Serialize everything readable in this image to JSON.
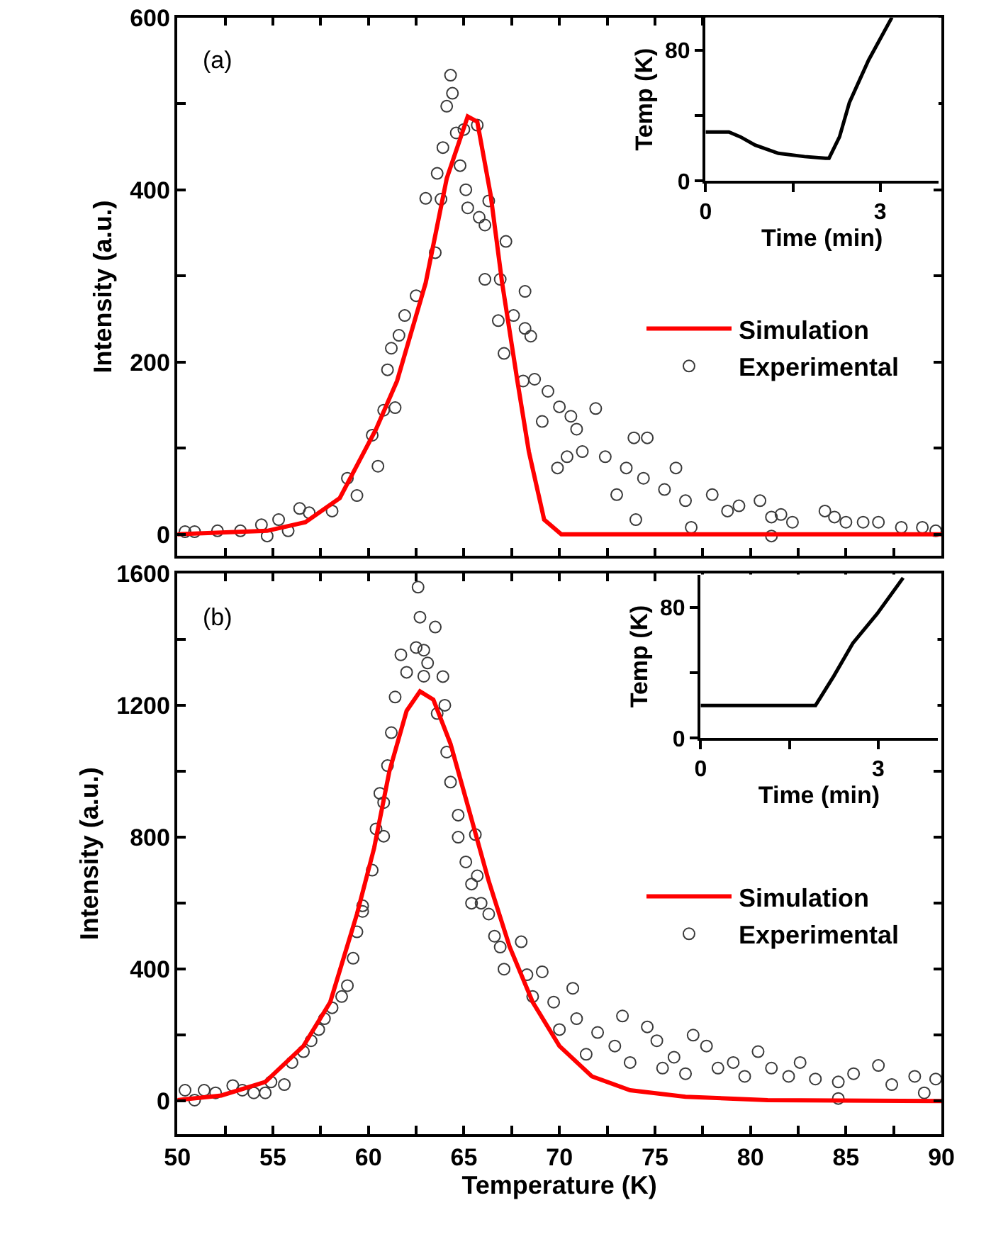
{
  "chart_data": [
    {
      "type": "scatter",
      "title": "(a)",
      "ylabel": "Intensity (a.u.)",
      "xlim": [
        50,
        90
      ],
      "ylim": [
        -25,
        600
      ],
      "xticks": [
        50,
        {
          "value": 52.5,
          "label": null
        },
        55,
        {
          "value": 57.5,
          "label": null
        },
        60,
        {
          "value": 62.5,
          "label": null
        },
        65,
        {
          "value": 67.5,
          "label": null
        },
        70,
        {
          "value": 72.5,
          "label": null
        },
        75,
        {
          "value": 77.5,
          "label": null
        },
        80,
        {
          "value": 82.5,
          "label": null
        },
        85,
        {
          "value": 87.5,
          "label": null
        },
        90
      ],
      "yticks": [
        0,
        {
          "value": 100,
          "label": null
        },
        200,
        {
          "value": 300,
          "label": null
        },
        400,
        {
          "value": 500,
          "label": null
        },
        600
      ],
      "tick_labels": "y",
      "legend": "right",
      "series": [
        {
          "name": "Experimental",
          "type": "scatter",
          "marker": "circle",
          "color": "#3a3a3a",
          "x": [
            50.4,
            50.9,
            52.1,
            53.3,
            54.4,
            54.7,
            55.3,
            55.8,
            56.4,
            56.9,
            58.1,
            58.9,
            59.4,
            60.2,
            60.5,
            60.8,
            61.0,
            61.2,
            61.4,
            61.6,
            61.9,
            62.5,
            63.0,
            63.5,
            63.6,
            63.8,
            63.9,
            64.1,
            64.3,
            64.4,
            64.6,
            64.8,
            65.0,
            65.1,
            65.2,
            65.7,
            65.8,
            66.1,
            66.1,
            66.3,
            66.8,
            66.9,
            67.1,
            67.2,
            67.6,
            68.1,
            68.2,
            68.2,
            68.5,
            68.7,
            69.1,
            69.4,
            69.9,
            70.0,
            70.4,
            70.6,
            70.9,
            71.2,
            71.9,
            72.4,
            73.0,
            73.5,
            73.9,
            74.0,
            74.4,
            74.6,
            75.5,
            76.1,
            76.6,
            76.9,
            78.0,
            78.8,
            79.4,
            80.5,
            81.1,
            81.1,
            81.6,
            82.2,
            83.9,
            84.4,
            85.0,
            85.9,
            86.7,
            87.9,
            89.0,
            89.7
          ],
          "values": [
            3,
            3,
            4,
            4,
            11,
            -2,
            17,
            4,
            30,
            25,
            27,
            65,
            45,
            115,
            79,
            144,
            191,
            216,
            147,
            231,
            254,
            277,
            390,
            327,
            419,
            389,
            449,
            497,
            533,
            512,
            466,
            428,
            470,
            400,
            379,
            475,
            368,
            359,
            296,
            387,
            248,
            296,
            210,
            340,
            254,
            178,
            282,
            239,
            230,
            180,
            131,
            166,
            77,
            148,
            90,
            137,
            122,
            96,
            146,
            90,
            46,
            77,
            112,
            17,
            65,
            112,
            52,
            77,
            39,
            8,
            46,
            27,
            33,
            39,
            20,
            -2,
            23,
            14,
            27,
            20,
            14,
            14,
            14,
            8,
            8,
            4
          ]
        },
        {
          "name": "Simulation",
          "type": "line",
          "line_style": "solid",
          "color": "#ff0000",
          "x": [
            50,
            54.7,
            56.7,
            58.5,
            60.4,
            61.5,
            63.0,
            64.1,
            65.2,
            65.7,
            66.4,
            67.0,
            67.8,
            68.4,
            69.2,
            70.1,
            90
          ],
          "values": [
            0,
            4,
            14,
            42,
            122,
            178,
            292,
            413,
            485,
            479,
            394,
            292,
            178,
            96,
            17,
            0,
            0
          ]
        }
      ]
    },
    {
      "type": "line",
      "xlabel": "Time (min)",
      "ylabel": "Temp (K)",
      "xlim": [
        0,
        4
      ],
      "ylim": [
        0,
        100
      ],
      "xticks": [
        0,
        {
          "value": 1.5,
          "label": null
        },
        3
      ],
      "yticks": [
        0,
        {
          "value": 40,
          "label": null
        },
        80
      ],
      "series": [
        {
          "color": "#000000",
          "x": [
            0,
            0.4,
            0.6,
            0.85,
            1.25,
            1.7,
            2.06,
            2.12,
            2.3,
            2.47,
            2.8,
            3.2
          ],
          "values": [
            30,
            30,
            27,
            22,
            17,
            15,
            14,
            14,
            27,
            48,
            74,
            100
          ]
        }
      ]
    },
    {
      "type": "scatter",
      "title": "(b)",
      "xlabel": "Temperature (K)",
      "ylabel": "Intensity (a.u.)",
      "xlim": [
        50,
        90
      ],
      "ylim": [
        -100,
        1600
      ],
      "xticks": [
        50,
        {
          "value": 52.5,
          "label": null
        },
        55,
        {
          "value": 57.5,
          "label": null
        },
        60,
        {
          "value": 62.5,
          "label": null
        },
        65,
        {
          "value": 67.5,
          "label": null
        },
        70,
        {
          "value": 72.5,
          "label": null
        },
        75,
        {
          "value": 77.5,
          "label": null
        },
        80,
        {
          "value": 82.5,
          "label": null
        },
        85,
        {
          "value": 87.5,
          "label": null
        },
        90
      ],
      "yticks": [
        0,
        {
          "value": 200,
          "label": null
        },
        400,
        {
          "value": 600,
          "label": null
        },
        800,
        {
          "value": 1000,
          "label": null
        },
        1200,
        {
          "value": 1400,
          "label": null
        },
        1600
      ],
      "legend": "right",
      "series": [
        {
          "name": "Experimental",
          "type": "scatter",
          "marker": "circle",
          "color": "#3a3a3a",
          "x": [
            50.4,
            50.9,
            51.4,
            52.0,
            52.9,
            53.4,
            54.0,
            54.6,
            54.9,
            55.6,
            56.0,
            56.6,
            57.0,
            57.4,
            57.7,
            58.1,
            58.6,
            58.9,
            59.2,
            59.4,
            59.7,
            59.7,
            60.2,
            60.4,
            60.6,
            60.8,
            60.8,
            61.0,
            61.2,
            61.4,
            61.7,
            62.0,
            62.5,
            62.6,
            62.7,
            62.9,
            62.9,
            63.1,
            63.5,
            63.6,
            63.9,
            64.0,
            64.1,
            64.3,
            64.7,
            64.7,
            65.1,
            65.4,
            65.4,
            65.6,
            65.7,
            65.9,
            66.3,
            66.6,
            66.9,
            67.1,
            68.0,
            68.3,
            68.6,
            69.1,
            69.7,
            70.0,
            70.7,
            70.9,
            71.4,
            72.0,
            72.9,
            73.3,
            73.7,
            74.6,
            75.1,
            75.4,
            76.0,
            76.6,
            77.0,
            77.7,
            78.3,
            79.1,
            79.7,
            80.4,
            81.1,
            82.0,
            82.6,
            83.4,
            84.6,
            84.6,
            85.4,
            86.7,
            87.4,
            88.6,
            89.1,
            89.7
          ],
          "values": [
            33,
            3,
            33,
            25,
            47,
            33,
            25,
            25,
            58,
            50,
            117,
            150,
            183,
            217,
            250,
            283,
            317,
            350,
            433,
            513,
            592,
            575,
            700,
            825,
            933,
            905,
            803,
            1017,
            1117,
            1225,
            1353,
            1300,
            1375,
            1558,
            1467,
            1367,
            1288,
            1328,
            1437,
            1175,
            1287,
            1200,
            1058,
            967,
            867,
            800,
            725,
            658,
            600,
            808,
            683,
            600,
            567,
            500,
            467,
            400,
            483,
            383,
            317,
            392,
            300,
            217,
            342,
            250,
            142,
            208,
            167,
            258,
            117,
            225,
            183,
            100,
            133,
            83,
            200,
            167,
            100,
            117,
            75,
            150,
            100,
            75,
            117,
            67,
            8,
            58,
            83,
            108,
            50,
            75,
            25,
            67
          ]
        },
        {
          "name": "Simulation",
          "type": "line",
          "line_style": "solid",
          "color": "#ff0000",
          "x": [
            50,
            52.3,
            54.6,
            56.6,
            58.0,
            59.4,
            60.3,
            61.1,
            62.0,
            62.7,
            63.4,
            64.3,
            65.1,
            66.3,
            67.4,
            68.6,
            70.0,
            71.7,
            73.7,
            76.6,
            80.9,
            90
          ],
          "values": [
            3,
            17,
            58,
            167,
            300,
            567,
            767,
            1000,
            1183,
            1242,
            1217,
            1083,
            917,
            667,
            467,
            300,
            167,
            75,
            33,
            13,
            3,
            0
          ]
        }
      ]
    },
    {
      "type": "line",
      "xlabel": "Time (min)",
      "ylabel": "Temp (K)",
      "xlim": [
        0,
        4
      ],
      "ylim": [
        0,
        100
      ],
      "xticks": [
        0,
        {
          "value": 1.5,
          "label": null
        },
        3
      ],
      "yticks": [
        0,
        {
          "value": 40,
          "label": null
        },
        80
      ],
      "series": [
        {
          "color": "#000000",
          "x": [
            0,
            1.94,
            2.25,
            2.57,
            2.98,
            3.42
          ],
          "values": [
            20,
            20,
            38,
            58,
            76,
            98
          ]
        }
      ]
    }
  ]
}
